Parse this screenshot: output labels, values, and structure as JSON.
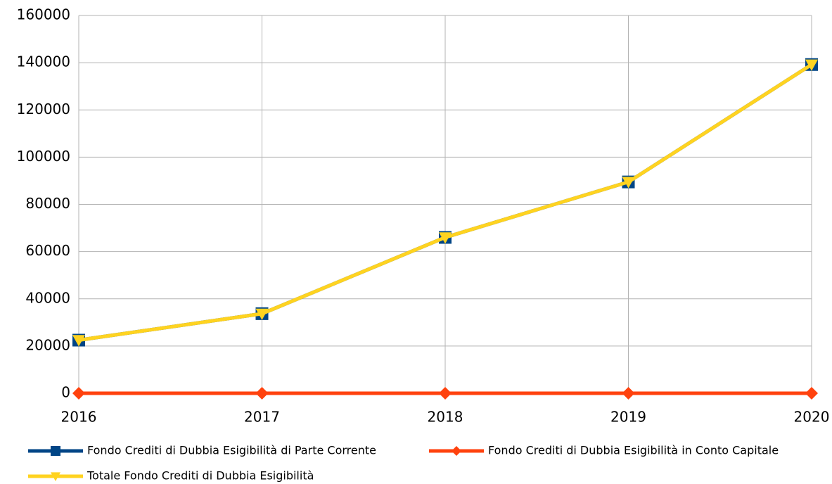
{
  "chart_data": {
    "type": "line",
    "categories": [
      "2016",
      "2017",
      "2018",
      "2019",
      "2020"
    ],
    "series": [
      {
        "name": "Fondo Crediti di Dubbia Esigibilità di Parte Corrente",
        "color": "#004586",
        "marker": "square",
        "values": [
          22500,
          33700,
          66000,
          89500,
          139200
        ]
      },
      {
        "name": "Fondo Crediti di Dubbia Esigibilità in Conto Capitale",
        "color": "#ff420e",
        "marker": "diamond",
        "values": [
          0,
          0,
          0,
          0,
          0
        ]
      },
      {
        "name": "Totale Fondo Crediti di Dubbia Esigibilità",
        "color": "#ffd320",
        "marker": "triangle-down",
        "values": [
          22500,
          33700,
          66000,
          89500,
          139200
        ]
      }
    ],
    "ylim": [
      0,
      160000
    ],
    "yticks": [
      0,
      20000,
      40000,
      60000,
      80000,
      100000,
      120000,
      140000,
      160000
    ],
    "grid": true,
    "legend": "bottom"
  }
}
